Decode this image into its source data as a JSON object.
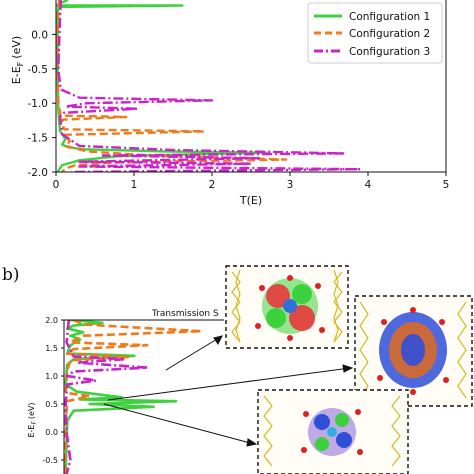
{
  "colors": {
    "configuration_1": "#3dd13d",
    "configuration_2": "#ef7a1a",
    "configuration_3": "#cc22cc"
  },
  "chart_data": [
    {
      "type": "line",
      "title": "",
      "xlabel": "T(E)",
      "ylabel": "E-E_F (eV)",
      "ylabel_parts": {
        "main": "E-E",
        "sub": "F",
        "unit": "(eV)"
      },
      "xlim": [
        0,
        5
      ],
      "ylim": [
        -2.0,
        0.5
      ],
      "x_ticks": [
        "0",
        "1",
        "2",
        "3",
        "4",
        "5"
      ],
      "y_ticks": [
        "-2.0",
        "-1.5",
        "-1.0",
        "-0.5",
        "0.0"
      ],
      "legend_position": "top-right",
      "grid": false,
      "series": [
        {
          "name": "Configuration 1",
          "color": "#3dd13d",
          "style": "solid",
          "points": [
            [
              0.15,
              0.5
            ],
            [
              0.05,
              0.45
            ],
            [
              0.0,
              0.42
            ],
            [
              1.62,
              0.42
            ],
            [
              0.03,
              0.4
            ],
            [
              0.02,
              0.3
            ],
            [
              0.02,
              -0.5
            ],
            [
              0.03,
              -1.1
            ],
            [
              0.05,
              -1.4
            ],
            [
              0.12,
              -1.52
            ],
            [
              0.08,
              -1.6
            ],
            [
              0.15,
              -1.64
            ],
            [
              0.35,
              -1.67
            ],
            [
              1.4,
              -1.7
            ],
            [
              2.7,
              -1.72
            ],
            [
              0.8,
              -1.77
            ],
            [
              0.3,
              -1.83
            ],
            [
              0.08,
              -1.9
            ],
            [
              0.02,
              -2.0
            ]
          ]
        },
        {
          "name": "Configuration 2",
          "color": "#ef7a1a",
          "style": "dashed",
          "points": [
            [
              0.04,
              0.5
            ],
            [
              0.02,
              0.0
            ],
            [
              0.03,
              -1.0
            ],
            [
              0.06,
              -1.18
            ],
            [
              0.9,
              -1.2
            ],
            [
              0.08,
              -1.24
            ],
            [
              0.1,
              -1.38
            ],
            [
              1.9,
              -1.41
            ],
            [
              0.1,
              -1.46
            ],
            [
              0.18,
              -1.55
            ],
            [
              0.12,
              -1.62
            ],
            [
              0.4,
              -1.7
            ],
            [
              1.2,
              -1.76
            ],
            [
              2.95,
              -1.82
            ],
            [
              0.8,
              -1.86
            ],
            [
              0.25,
              -1.9
            ],
            [
              0.12,
              -1.95
            ],
            [
              0.08,
              -2.0
            ]
          ]
        },
        {
          "name": "Configuration 3",
          "color": "#cc22cc",
          "style": "dashdot",
          "points": [
            [
              0.06,
              0.5
            ],
            [
              0.03,
              -0.5
            ],
            [
              0.06,
              -0.8
            ],
            [
              0.3,
              -0.92
            ],
            [
              2.0,
              -0.96
            ],
            [
              0.4,
              -1.0
            ],
            [
              0.12,
              -1.05
            ],
            [
              1.05,
              -1.08
            ],
            [
              0.1,
              -1.14
            ],
            [
              0.05,
              -1.2
            ],
            [
              0.08,
              -1.45
            ],
            [
              0.3,
              -1.62
            ],
            [
              1.5,
              -1.68
            ],
            [
              3.7,
              -1.73
            ],
            [
              0.6,
              -1.76
            ],
            [
              2.6,
              -1.8
            ],
            [
              0.3,
              -1.85
            ],
            [
              2.5,
              -1.88
            ],
            [
              0.3,
              -1.92
            ],
            [
              3.9,
              -1.96
            ],
            [
              0.2,
              -2.0
            ]
          ]
        }
      ]
    },
    {
      "type": "line",
      "panel_label": "b)",
      "title_fragment": "Transmission S",
      "ylabel": "E-E_F (eV)",
      "ylabel_parts": {
        "main": "E-E",
        "sub": "F",
        "unit": "(eV)"
      },
      "ylim": [
        -0.75,
        2.0
      ],
      "y_ticks": [
        "2.0",
        "1.5",
        "1.0",
        "0.5",
        "0.0",
        "-0.5"
      ],
      "grid": false,
      "series": [
        {
          "name": "Configuration 1",
          "color": "#3dd13d",
          "style": "solid",
          "points": [
            [
              0.2,
              2.0
            ],
            [
              1.2,
              1.95
            ],
            [
              0.3,
              1.9
            ],
            [
              0.1,
              1.85
            ],
            [
              0.6,
              1.78
            ],
            [
              0.2,
              1.72
            ],
            [
              0.5,
              1.65
            ],
            [
              0.2,
              1.55
            ],
            [
              0.1,
              1.4
            ],
            [
              2.2,
              1.36
            ],
            [
              0.3,
              1.3
            ],
            [
              0.1,
              1.2
            ],
            [
              0.05,
              0.85
            ],
            [
              0.4,
              0.72
            ],
            [
              1.8,
              0.62
            ],
            [
              0.5,
              0.58
            ],
            [
              3.5,
              0.55
            ],
            [
              0.8,
              0.5
            ],
            [
              2.8,
              0.45
            ],
            [
              0.3,
              0.38
            ],
            [
              0.1,
              0.2
            ],
            [
              0.05,
              -0.75
            ]
          ]
        },
        {
          "name": "Configuration 2",
          "color": "#ef7a1a",
          "style": "dashed",
          "points": [
            [
              0.3,
              2.0
            ],
            [
              0.6,
              1.92
            ],
            [
              4.3,
              1.8
            ],
            [
              0.6,
              1.72
            ],
            [
              0.2,
              1.6
            ],
            [
              2.6,
              1.55
            ],
            [
              0.3,
              1.48
            ],
            [
              0.1,
              1.4
            ],
            [
              2.0,
              1.34
            ],
            [
              0.2,
              1.28
            ],
            [
              0.1,
              1.1
            ],
            [
              0.05,
              0.7
            ],
            [
              0.8,
              0.64
            ],
            [
              0.1,
              0.55
            ],
            [
              0.05,
              0.2
            ],
            [
              0.03,
              -0.75
            ]
          ]
        },
        {
          "name": "Configuration 3",
          "color": "#cc22cc",
          "style": "dashdot",
          "points": [
            [
              0.15,
              2.0
            ],
            [
              0.08,
              1.6
            ],
            [
              0.3,
              1.35
            ],
            [
              1.9,
              1.3
            ],
            [
              0.4,
              1.24
            ],
            [
              2.6,
              1.15
            ],
            [
              0.3,
              1.08
            ],
            [
              0.1,
              1.0
            ],
            [
              1.0,
              0.92
            ],
            [
              0.1,
              0.85
            ],
            [
              0.05,
              0.5
            ],
            [
              0.08,
              0.0
            ],
            [
              0.15,
              -0.3
            ],
            [
              0.2,
              -0.5
            ],
            [
              0.08,
              -0.75
            ]
          ]
        }
      ]
    }
  ]
}
